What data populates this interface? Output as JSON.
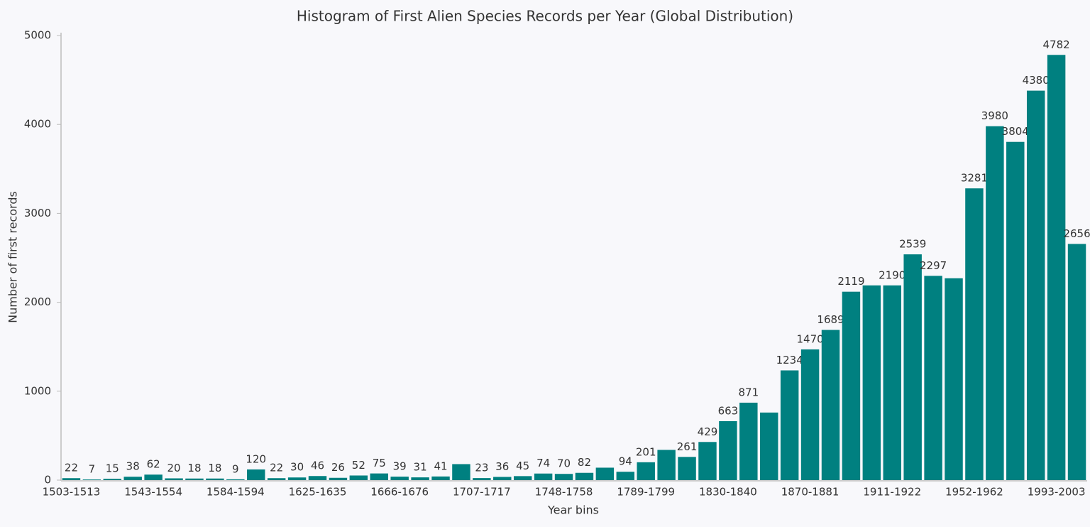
{
  "chart_data": {
    "type": "bar",
    "title": "Histogram of First Alien Species Records per Year (Global Distribution)",
    "x_label": "Year bins",
    "y_label": "Number of first records",
    "categories": [
      "1503-1513",
      null,
      null,
      null,
      "1543-1554",
      null,
      null,
      null,
      "1584-1594",
      null,
      null,
      null,
      "1625-1635",
      null,
      null,
      null,
      "1666-1676",
      null,
      null,
      null,
      "1707-1717",
      null,
      null,
      null,
      "1748-1758",
      null,
      null,
      null,
      "1789-1799",
      null,
      null,
      null,
      "1830-1840",
      null,
      null,
      null,
      "1870-1881",
      null,
      null,
      null,
      "1911-1922",
      null,
      null,
      null,
      "1952-1962",
      null,
      null,
      null,
      "1993-2003",
      null
    ],
    "values": [
      22,
      7,
      15,
      38,
      62,
      20,
      18,
      18,
      9,
      120,
      22,
      30,
      46,
      26,
      52,
      75,
      39,
      31,
      41,
      180,
      23,
      36,
      45,
      74,
      70,
      82,
      140,
      94,
      201,
      340,
      261,
      429,
      663,
      871,
      760,
      1234,
      1470,
      1689,
      2119,
      2190,
      2190,
      2539,
      2297,
      2270,
      3281,
      3980,
      3804,
      4380,
      4782,
      2656
    ],
    "value_labels": [
      "22",
      "7",
      "15",
      "38",
      "62",
      "20",
      "18",
      "18",
      "9",
      "120",
      "22",
      "30",
      "46",
      "26",
      "52",
      "75",
      "39",
      "31",
      "41",
      null,
      "23",
      "36",
      "45",
      "74",
      "70",
      "82",
      null,
      "94",
      "201",
      null,
      "261",
      "429",
      "663",
      "871",
      null,
      "1234",
      "1470",
      "1689",
      "2119",
      null,
      "2190",
      "2539",
      "2297",
      null,
      "3281",
      "3980",
      "3804",
      "4380",
      "4782",
      "2656"
    ],
    "color": "#008080",
    "ylim": [
      0,
      5000
    ],
    "yticks": [
      0,
      1000,
      2000,
      3000,
      4000,
      5000
    ],
    "grid": false
  }
}
